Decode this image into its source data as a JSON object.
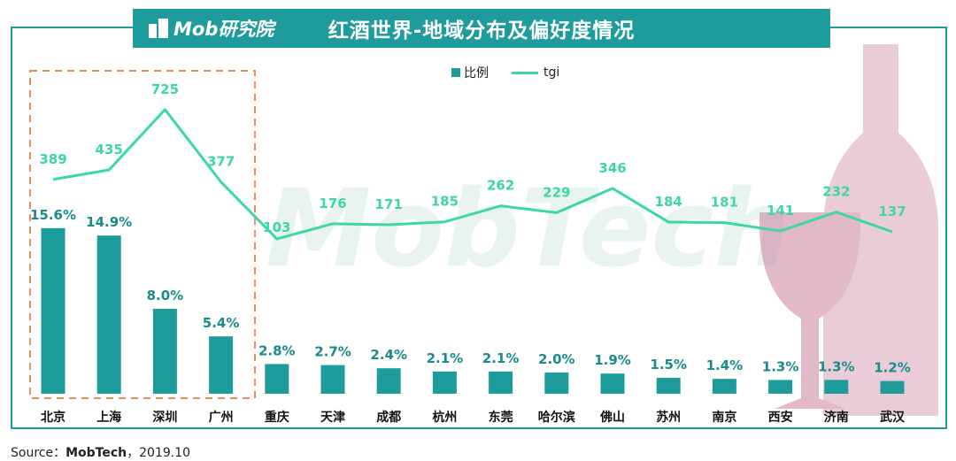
{
  "header": {
    "title": "红酒世界-地域分布及偏好度情况",
    "logo_text": "Mob研究院"
  },
  "legend": {
    "bar_label": "比例",
    "line_label": "tgi"
  },
  "source": {
    "prefix": "Source：",
    "brand": "MobTech",
    "date": "，2019.10"
  },
  "watermark": "MobTech",
  "colors": {
    "bar": "#1e9b9b",
    "line": "#3dd6a5",
    "highlight_box": "#f08a5d",
    "wine": "#c9809c"
  },
  "chart_data": {
    "type": "bar",
    "categories": [
      "北京",
      "上海",
      "深圳",
      "广州",
      "重庆",
      "天津",
      "成都",
      "杭州",
      "东莞",
      "哈尔滨",
      "佛山",
      "苏州",
      "南京",
      "西安",
      "济南",
      "武汉"
    ],
    "series": [
      {
        "name": "比例",
        "type": "bar",
        "values": [
          15.6,
          14.9,
          8.0,
          5.4,
          2.8,
          2.7,
          2.4,
          2.1,
          2.1,
          2.0,
          1.9,
          1.5,
          1.4,
          1.3,
          1.3,
          1.2
        ],
        "labels": [
          "15.6%",
          "14.9%",
          "8.0%",
          "5.4%",
          "2.8%",
          "2.7%",
          "2.4%",
          "2.1%",
          "2.1%",
          "2.0%",
          "1.9%",
          "1.5%",
          "1.4%",
          "1.3%",
          "1.3%",
          "1.2%"
        ]
      },
      {
        "name": "tgi",
        "type": "line",
        "values": [
          389,
          435,
          725,
          377,
          103,
          176,
          171,
          185,
          262,
          229,
          346,
          184,
          181,
          141,
          232,
          137
        ]
      }
    ],
    "highlighted_categories": [
      "北京",
      "上海",
      "深圳",
      "广州"
    ],
    "grid": false,
    "legend_position": "top-center"
  }
}
